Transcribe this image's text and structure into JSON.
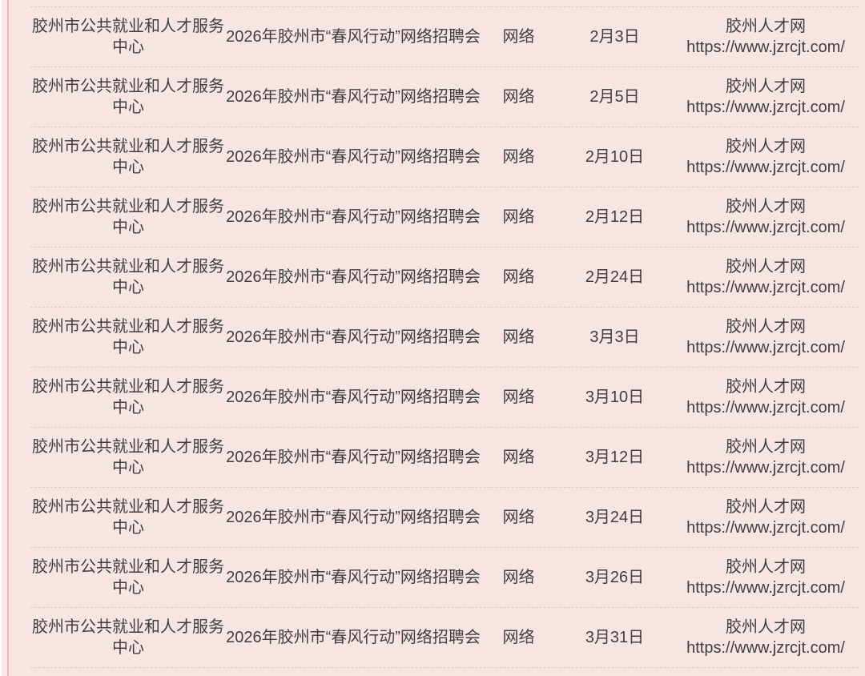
{
  "page": {
    "colors": {
      "bg": "#f7e5e4",
      "left_strip": "#fbe7e8",
      "left_line": "#f3b6bb",
      "separator": "#e9cba7",
      "text": "#3f3f3f"
    }
  },
  "table": {
    "rows": [
      {
        "organizer": "胶州市公共就业和人才服务中心",
        "event": "2026年胶州市“春风行动”网络招聘会",
        "format": "网络",
        "date": "2月3日",
        "site_name": "胶州人才网",
        "site_url": "https://www.jzrcjt.com/"
      },
      {
        "organizer": "胶州市公共就业和人才服务中心",
        "event": "2026年胶州市“春风行动”网络招聘会",
        "format": "网络",
        "date": "2月5日",
        "site_name": "胶州人才网",
        "site_url": "https://www.jzrcjt.com/"
      },
      {
        "organizer": "胶州市公共就业和人才服务中心",
        "event": "2026年胶州市“春风行动”网络招聘会",
        "format": "网络",
        "date": "2月10日",
        "site_name": "胶州人才网",
        "site_url": "https://www.jzrcjt.com/"
      },
      {
        "organizer": "胶州市公共就业和人才服务中心",
        "event": "2026年胶州市“春风行动”网络招聘会",
        "format": "网络",
        "date": "2月12日",
        "site_name": "胶州人才网",
        "site_url": "https://www.jzrcjt.com/"
      },
      {
        "organizer": "胶州市公共就业和人才服务中心",
        "event": "2026年胶州市“春风行动”网络招聘会",
        "format": "网络",
        "date": "2月24日",
        "site_name": "胶州人才网",
        "site_url": "https://www.jzrcjt.com/"
      },
      {
        "organizer": "胶州市公共就业和人才服务中心",
        "event": "2026年胶州市“春风行动”网络招聘会",
        "format": "网络",
        "date": "3月3日",
        "site_name": "胶州人才网",
        "site_url": "https://www.jzrcjt.com/"
      },
      {
        "organizer": "胶州市公共就业和人才服务中心",
        "event": "2026年胶州市“春风行动”网络招聘会",
        "format": "网络",
        "date": "3月10日",
        "site_name": "胶州人才网",
        "site_url": "https://www.jzrcjt.com/"
      },
      {
        "organizer": "胶州市公共就业和人才服务中心",
        "event": "2026年胶州市“春风行动”网络招聘会",
        "format": "网络",
        "date": "3月12日",
        "site_name": "胶州人才网",
        "site_url": "https://www.jzrcjt.com/"
      },
      {
        "organizer": "胶州市公共就业和人才服务中心",
        "event": "2026年胶州市“春风行动”网络招聘会",
        "format": "网络",
        "date": "3月24日",
        "site_name": "胶州人才网",
        "site_url": "https://www.jzrcjt.com/"
      },
      {
        "organizer": "胶州市公共就业和人才服务中心",
        "event": "2026年胶州市“春风行动”网络招聘会",
        "format": "网络",
        "date": "3月26日",
        "site_name": "胶州人才网",
        "site_url": "https://www.jzrcjt.com/"
      },
      {
        "organizer": "胶州市公共就业和人才服务中心",
        "event": "2026年胶州市“春风行动”网络招聘会",
        "format": "网络",
        "date": "3月31日",
        "site_name": "胶州人才网",
        "site_url": "https://www.jzrcjt.com/"
      }
    ]
  }
}
